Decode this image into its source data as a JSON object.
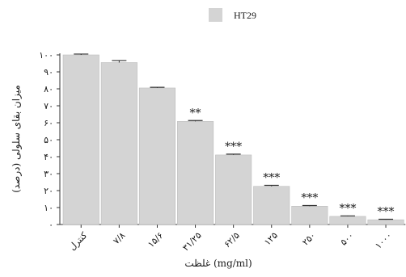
{
  "chart_data": {
    "type": "bar",
    "ylabel": "میزان بقای سلولی (درصد)",
    "xlabel": "غلظت (mg/ml)",
    "ylim": [
      0,
      100
    ],
    "yticks": [
      {
        "value": 0,
        "label": "۰"
      },
      {
        "value": 10,
        "label": "۱۰"
      },
      {
        "value": 20,
        "label": "۲۰"
      },
      {
        "value": 30,
        "label": "۳۰"
      },
      {
        "value": 40,
        "label": "۴۰"
      },
      {
        "value": 50,
        "label": "۵۰"
      },
      {
        "value": 60,
        "label": "۶۰"
      },
      {
        "value": 70,
        "label": "۷۰"
      },
      {
        "value": 80,
        "label": "۸۰"
      },
      {
        "value": 90,
        "label": "۹۰"
      },
      {
        "value": 100,
        "label": "۱۰۰"
      }
    ],
    "categories": [
      "کنترل",
      "۷/۸",
      "۱۵/۶",
      "۳۱/۲۵",
      "۶۲/۵",
      "۱۲۵",
      "۲۵۰",
      "۵۰۰",
      "۱۰۰۰"
    ],
    "series": [
      {
        "name": "HT29",
        "color": "#d4d4d4",
        "values": [
          100,
          95.5,
          80.5,
          60.8,
          41,
          22.5,
          10.8,
          4.8,
          2.8
        ],
        "errors": [
          0.5,
          1.2,
          0.4,
          0.5,
          0.5,
          0.6,
          0.4,
          0.3,
          0.3
        ]
      }
    ],
    "significance": [
      "",
      "",
      "",
      "**",
      "***",
      "***",
      "***",
      "***",
      "***"
    ],
    "legend": {
      "position": "top-center",
      "entries": [
        "HT29"
      ]
    },
    "grid": false
  }
}
